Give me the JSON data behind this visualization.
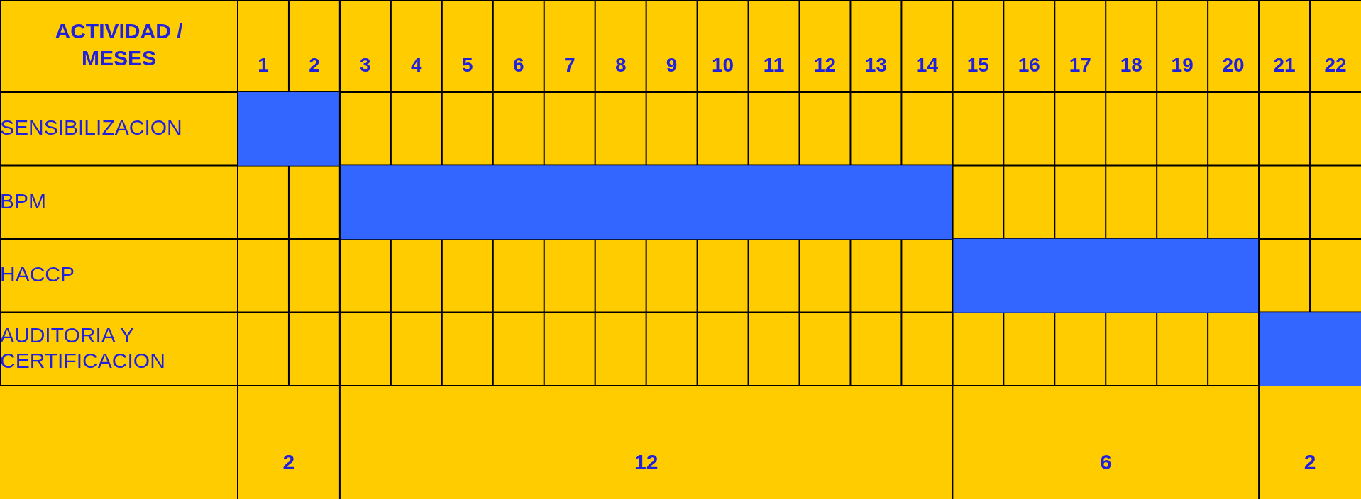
{
  "chart_data": {
    "type": "bar",
    "orientation": "horizontal",
    "ylabel": "ACTIVIDAD / MESES",
    "categories": [
      "SENSIBILIZACION",
      "BPM",
      "HACCP",
      "AUDITORIA Y CERTIFICACION"
    ],
    "base": [
      0,
      2,
      14,
      20
    ],
    "values": [
      2,
      12,
      6,
      2
    ],
    "color": "#3366ff",
    "grid": "x",
    "legend": false,
    "annotations": [
      "2",
      "12",
      "6",
      "2"
    ],
    "ref_lines": [
      {
        "axis": "x",
        "value": 2
      },
      {
        "axis": "x",
        "value": 14
      },
      {
        "axis": "x",
        "value": 20
      }
    ],
    "xlim": [
      0,
      22
    ],
    "xticks": [
      {
        "value": 0.5,
        "label": "1"
      },
      {
        "value": 1.5,
        "label": "2"
      },
      {
        "value": 2.5,
        "label": "3"
      },
      {
        "value": 3.5,
        "label": "4"
      },
      {
        "value": 4.5,
        "label": "5"
      },
      {
        "value": 5.5,
        "label": "6"
      },
      {
        "value": 6.5,
        "label": "7"
      },
      {
        "value": 7.5,
        "label": "8"
      },
      {
        "value": 8.5,
        "label": "9"
      },
      {
        "value": 9.5,
        "label": "10"
      },
      {
        "value": 10.5,
        "label": "11"
      },
      {
        "value": 11.5,
        "label": "12"
      },
      {
        "value": 12.5,
        "label": "13"
      },
      {
        "value": 13.5,
        "label": "14"
      },
      {
        "value": 14.5,
        "label": "15"
      },
      {
        "value": 15.5,
        "label": "16"
      },
      {
        "value": 16.5,
        "label": "17"
      },
      {
        "value": 17.5,
        "label": "18"
      },
      {
        "value": 18.5,
        "label": "19"
      },
      {
        "value": 19.5,
        "label": "20"
      },
      {
        "value": 20.5,
        "label": "21"
      },
      {
        "value": 21.5,
        "label": "22"
      }
    ]
  }
}
